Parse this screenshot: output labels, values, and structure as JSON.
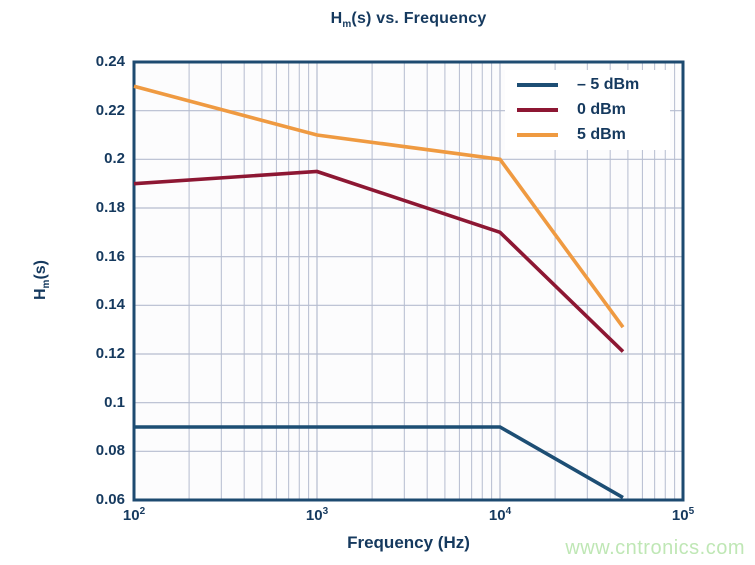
{
  "title": {
    "prefix": "H",
    "sub": "m",
    "suffix": "(s) vs. Frequency"
  },
  "watermark": "www.cntronics.com",
  "colors": {
    "axis": "#1d4a70",
    "grid": "#b5bccf",
    "text": "#15395e",
    "plot_background": "#fcfcfd",
    "legend_background": "#ffffff",
    "watermark": "#bfe7b5"
  },
  "chart_data": {
    "type": "line",
    "title": "Hm(s) vs. Frequency",
    "xlabel": "Frequency (Hz)",
    "ylabel": {
      "prefix": "H",
      "sub": "m",
      "suffix": "(s)"
    },
    "x_scale": "log",
    "xlim": [
      100,
      100000
    ],
    "ylim": [
      0.06,
      0.24
    ],
    "grid": "on",
    "legend_position": "top-right",
    "x_ticks": [
      {
        "base": "10",
        "exp": "2",
        "value": 100
      },
      {
        "base": "10",
        "exp": "3",
        "value": 1000
      },
      {
        "base": "10",
        "exp": "4",
        "value": 10000
      },
      {
        "base": "10",
        "exp": "5",
        "value": 100000
      }
    ],
    "y_ticks": [
      {
        "label": "0.24",
        "value": 0.24
      },
      {
        "label": "0.22",
        "value": 0.22
      },
      {
        "label": "0.2",
        "value": 0.2
      },
      {
        "label": "0.18",
        "value": 0.18
      },
      {
        "label": "0.16",
        "value": 0.16
      },
      {
        "label": "0.14",
        "value": 0.14
      },
      {
        "label": "0.12",
        "value": 0.12
      },
      {
        "label": "0.1",
        "value": 0.1
      },
      {
        "label": "0.08",
        "value": 0.08
      },
      {
        "label": "0.06",
        "value": 0.06
      }
    ],
    "series": [
      {
        "name": "– 5 dBm",
        "color": "#1d4e74",
        "points": [
          [
            100,
            0.09
          ],
          [
            1000,
            0.09
          ],
          [
            10000,
            0.09
          ],
          [
            47000,
            0.061
          ]
        ]
      },
      {
        "name": "0 dBm",
        "color": "#8d1733",
        "points": [
          [
            100,
            0.19
          ],
          [
            1000,
            0.195
          ],
          [
            10000,
            0.17
          ],
          [
            47000,
            0.121
          ]
        ]
      },
      {
        "name": "5 dBm",
        "color": "#ef9a41",
        "points": [
          [
            100,
            0.23
          ],
          [
            1000,
            0.21
          ],
          [
            10000,
            0.2
          ],
          [
            47000,
            0.131
          ]
        ]
      }
    ]
  }
}
